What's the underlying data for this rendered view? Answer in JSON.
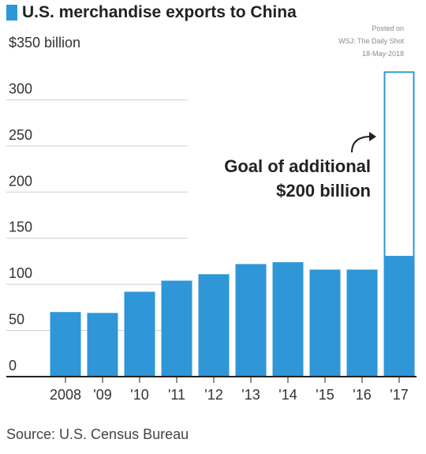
{
  "title": "U.S. merchandise exports to China",
  "watermark": {
    "line1": "Posted on",
    "line2": "WSJ: The Daily Shot",
    "line3": "18-May-2018"
  },
  "source": "Source: U.S. Census Bureau",
  "colors": {
    "bar": "#2f96d8",
    "goal_outline": "#2f96d8",
    "grid": "#cfcfcf",
    "axis": "#222222"
  },
  "chart_data": {
    "type": "bar",
    "categories": [
      "2008",
      "'09",
      "'10",
      "'11",
      "'12",
      "'13",
      "'14",
      "'15",
      "'16",
      "'17"
    ],
    "values": [
      70,
      69,
      92,
      104,
      111,
      122,
      124,
      116,
      116,
      130
    ],
    "goal": {
      "category": "'17",
      "base": 130,
      "additional": 200,
      "total": 330
    },
    "yticks": [
      {
        "value": 0,
        "label": "0"
      },
      {
        "value": 50,
        "label": "50"
      },
      {
        "value": 100,
        "label": "100"
      },
      {
        "value": 150,
        "label": "150"
      },
      {
        "value": 200,
        "label": "200"
      },
      {
        "value": 250,
        "label": "250"
      },
      {
        "value": 300,
        "label": "300"
      },
      {
        "value": 350,
        "label": "$350 billion"
      }
    ],
    "ylim": [
      0,
      350
    ],
    "annotation": [
      "Goal of additional",
      "$200 billion"
    ]
  }
}
